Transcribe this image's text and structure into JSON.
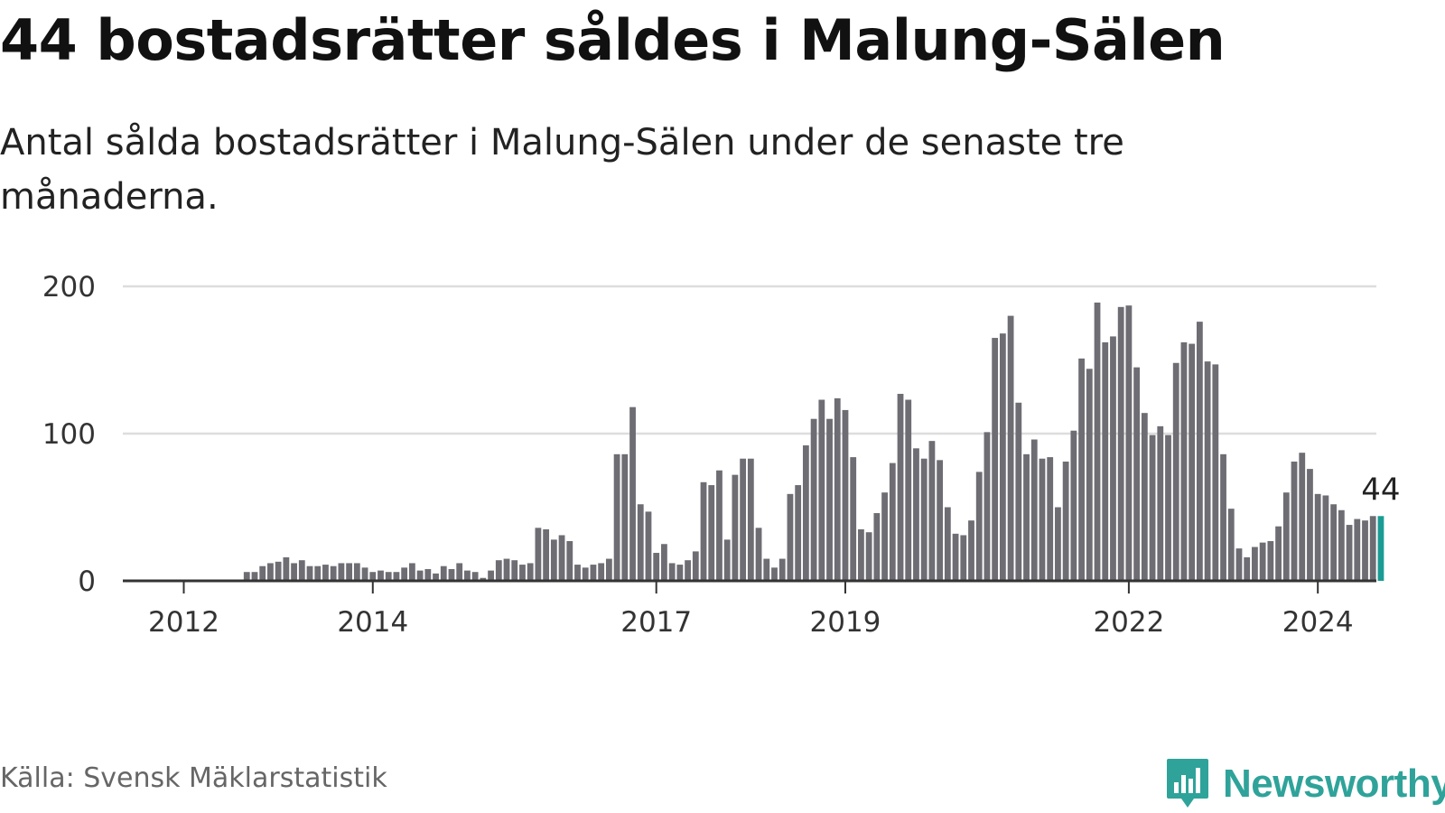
{
  "title": "44 bostadsrätter såldes i Malung-Sälen",
  "subtitle": "Antal sålda bostadsrätter i Malung-Sälen under de senaste tre månaderna.",
  "source": "Källa: Svensk Mäklarstatistik",
  "brand": "Newsworthy",
  "colors": {
    "bar": "#6e6d73",
    "highlight": "#1a9c95",
    "grid": "#dddddd",
    "axis": "#333333",
    "brand": "#2fa39a"
  },
  "chart_data": {
    "type": "bar",
    "ylim": [
      0,
      200
    ],
    "y_ticks": [
      0,
      100,
      200
    ],
    "x_ticks": [
      {
        "label": "2012",
        "index": 0
      },
      {
        "label": "2014",
        "index": 24
      },
      {
        "label": "2017",
        "index": 60
      },
      {
        "label": "2019",
        "index": 84
      },
      {
        "label": "2022",
        "index": 120
      },
      {
        "label": "2024",
        "index": 144
      }
    ],
    "leading_empty_slots": 8,
    "values": [
      6,
      6,
      10,
      12,
      13,
      16,
      12,
      14,
      10,
      10,
      11,
      10,
      12,
      12,
      12,
      9,
      6,
      7,
      6,
      6,
      9,
      12,
      7,
      8,
      5,
      10,
      8,
      12,
      7,
      6,
      2,
      7,
      14,
      15,
      14,
      11,
      12,
      36,
      35,
      28,
      31,
      27,
      11,
      9,
      11,
      12,
      15,
      86,
      86,
      118,
      52,
      47,
      19,
      25,
      12,
      11,
      14,
      20,
      67,
      65,
      75,
      28,
      72,
      83,
      83,
      36,
      15,
      9,
      15,
      59,
      65,
      92,
      110,
      123,
      110,
      124,
      116,
      84,
      35,
      33,
      46,
      60,
      80,
      127,
      123,
      90,
      83,
      95,
      82,
      50,
      32,
      31,
      41,
      74,
      101,
      165,
      168,
      180,
      121,
      86,
      96,
      83,
      84,
      50,
      81,
      102,
      151,
      144,
      189,
      162,
      166,
      186,
      187,
      145,
      114,
      99,
      105,
      99,
      148,
      162,
      161,
      176,
      149,
      147,
      86,
      49,
      22,
      16,
      23,
      26,
      27,
      37,
      60,
      81,
      87,
      76,
      59,
      58,
      52,
      48,
      38,
      42,
      41,
      44,
      44
    ],
    "highlight_last": true,
    "annotation": {
      "label": "44",
      "value": 44
    }
  }
}
